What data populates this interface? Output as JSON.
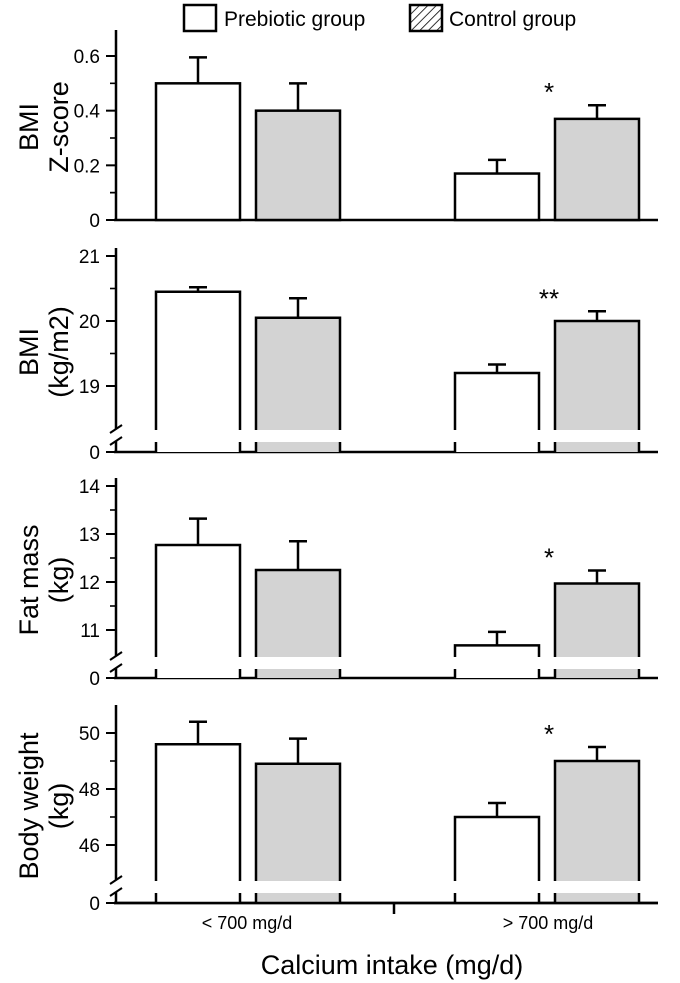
{
  "legend": {
    "entries": [
      {
        "label": "Prebiotic group",
        "style": "open"
      },
      {
        "label": "Control group",
        "style": "hatched"
      }
    ],
    "placement": "top-center"
  },
  "x_axis": {
    "title": "Calcium intake (mg/d)",
    "categories": [
      "< 700 mg/d",
      "> 700 mg/d"
    ]
  },
  "colors": {
    "prebiotic_fill": "#ffffff",
    "control_fill": "#d3d3d3",
    "stroke": "#000000"
  },
  "chart_data": [
    {
      "type": "bar",
      "ylabel_lines": [
        "BMI",
        "Z-score"
      ],
      "ylim": [
        0,
        0.65
      ],
      "yticks": [
        "0",
        "0.2",
        "0.4",
        "0.6"
      ],
      "ytick_values": [
        0,
        0.2,
        0.4,
        0.6
      ],
      "axis_break": false,
      "categories": [
        "< 700 mg/d",
        "> 700 mg/d"
      ],
      "series": [
        {
          "name": "Prebiotic group",
          "values": [
            0.5,
            0.17
          ],
          "errors": [
            0.095,
            0.05
          ]
        },
        {
          "name": "Control group",
          "values": [
            0.4,
            0.37
          ],
          "errors": [
            0.1,
            0.05
          ]
        }
      ],
      "annotations": [
        {
          "text": "*",
          "category": 1,
          "series": 1
        }
      ]
    },
    {
      "type": "bar",
      "ylabel_lines": [
        "BMI",
        "(kg/m2)"
      ],
      "ylim": [
        18.5,
        21
      ],
      "yticks": [
        "0",
        "19",
        "20",
        "21"
      ],
      "ytick_values": [
        null,
        19,
        20,
        21
      ],
      "axis_break": true,
      "categories": [
        "< 700 mg/d",
        "> 700 mg/d"
      ],
      "series": [
        {
          "name": "Prebiotic group",
          "values": [
            20.45,
            19.2
          ],
          "errors": [
            0.07,
            0.13
          ]
        },
        {
          "name": "Control group",
          "values": [
            20.05,
            20.0
          ],
          "errors": [
            0.3,
            0.15
          ]
        }
      ],
      "annotations": [
        {
          "text": "**",
          "category": 1,
          "series": 1
        }
      ]
    },
    {
      "type": "bar",
      "ylabel_lines": [
        "Fat mass",
        "(kg)"
      ],
      "ylim": [
        10.2,
        14
      ],
      "yticks": [
        "0",
        "11",
        "12",
        "13",
        "14"
      ],
      "ytick_values": [
        null,
        11,
        12,
        13,
        14
      ],
      "axis_break": true,
      "categories": [
        "< 700 mg/d",
        "> 700 mg/d"
      ],
      "series": [
        {
          "name": "Prebiotic group",
          "values": [
            12.77,
            10.68
          ],
          "errors": [
            0.55,
            0.28
          ]
        },
        {
          "name": "Control group",
          "values": [
            12.25,
            11.97
          ],
          "errors": [
            0.6,
            0.27
          ]
        }
      ],
      "annotations": [
        {
          "text": "*",
          "category": 1,
          "series": 1
        }
      ]
    },
    {
      "type": "bar",
      "ylabel_lines": [
        "Body weight",
        "(kg)"
      ],
      "ylim": [
        44.8,
        51
      ],
      "yticks": [
        "0",
        "46",
        "48",
        "50"
      ],
      "ytick_values": [
        null,
        46,
        48,
        50
      ],
      "axis_break": true,
      "categories": [
        "< 700 mg/d",
        "> 700 mg/d"
      ],
      "series": [
        {
          "name": "Prebiotic group",
          "values": [
            49.6,
            47.0
          ],
          "errors": [
            0.8,
            0.5
          ]
        },
        {
          "name": "Control group",
          "values": [
            48.9,
            49.0
          ],
          "errors": [
            0.9,
            0.5
          ]
        }
      ],
      "annotations": [
        {
          "text": "*",
          "category": 1,
          "series": 1
        }
      ]
    }
  ]
}
